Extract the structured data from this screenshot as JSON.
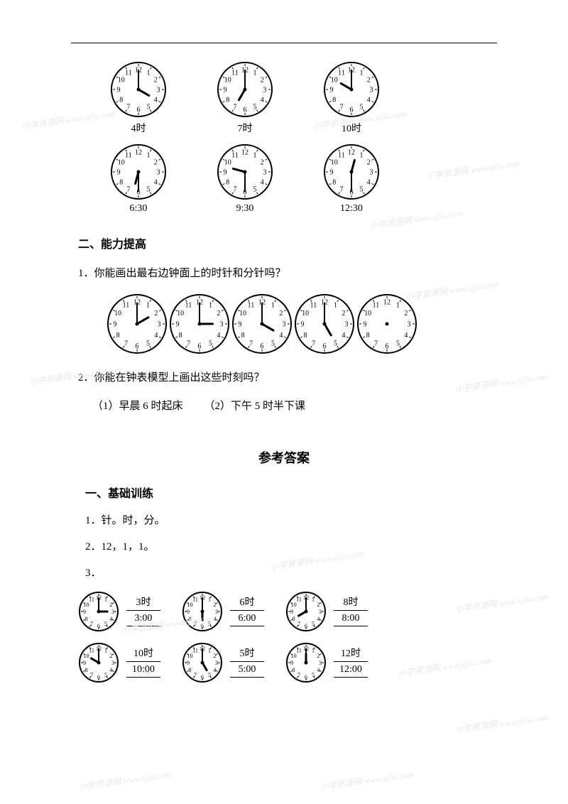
{
  "style": {
    "page_bg": "#ffffff",
    "text_color": "#000000",
    "watermark_color": "#e8e8e8",
    "clock_face_bg": "#ffffff",
    "clock_stroke": "#000000",
    "font_body": 15,
    "font_heading": 16,
    "font_answer_title": 18,
    "clock_large_radius": 38,
    "clock_small_radius": 28,
    "hour_hand_len": 16,
    "minute_hand_len": 26
  },
  "watermark_text": "小学资源网 www.xj5u.com",
  "clocks_row1": [
    {
      "label": "4时",
      "hour": 4,
      "minute": 0
    },
    {
      "label": "7时",
      "hour": 7,
      "minute": 0
    },
    {
      "label": "10时",
      "hour": 10,
      "minute": 0
    }
  ],
  "clocks_row2": [
    {
      "label": "6:30",
      "hour": 6,
      "minute": 30
    },
    {
      "label": "9:30",
      "hour": 9,
      "minute": 30
    },
    {
      "label": "12:30",
      "hour": 12,
      "minute": 30
    }
  ],
  "section2_heading": "二、能力提高",
  "q1_text": "1．你能画出最右边钟面上的时针和分针吗？",
  "q1_clocks": [
    {
      "hour": 2,
      "minute": 0,
      "hands": true
    },
    {
      "hour": 3,
      "minute": 0,
      "hands": true
    },
    {
      "hour": 4,
      "minute": 0,
      "hands": true,
      "wrong_min": true
    },
    {
      "hour": 5,
      "minute": 0,
      "hands": true
    },
    {
      "hour": null,
      "minute": null,
      "hands": false
    }
  ],
  "q2_text": "2．你能在钟表模型上画出这些时刻吗？",
  "q2_sub": "（1）早晨 6 时起床  （2）下午 5 时半下课",
  "answer_title": "参考答案",
  "section1_heading": "一、基础训练",
  "a1": "1．针。时，分。",
  "a2": "2．12，1，1。",
  "a3": "3．",
  "ans_grid": {
    "row1": [
      {
        "hour": 3,
        "minute": 0,
        "t1": "3时",
        "t2": "3:00"
      },
      {
        "hour": 6,
        "minute": 0,
        "t1": "6时",
        "t2": "6:00"
      },
      {
        "hour": 8,
        "minute": 0,
        "t1": "8时",
        "t2": "8:00"
      }
    ],
    "row2": [
      {
        "hour": 10,
        "minute": 0,
        "t1": "10时",
        "t2": "10:00"
      },
      {
        "hour": 5,
        "minute": 0,
        "t1": "5时",
        "t2": "5:00"
      },
      {
        "hour": 12,
        "minute": 0,
        "t1": "12时",
        "t2": "12:00"
      }
    ]
  }
}
